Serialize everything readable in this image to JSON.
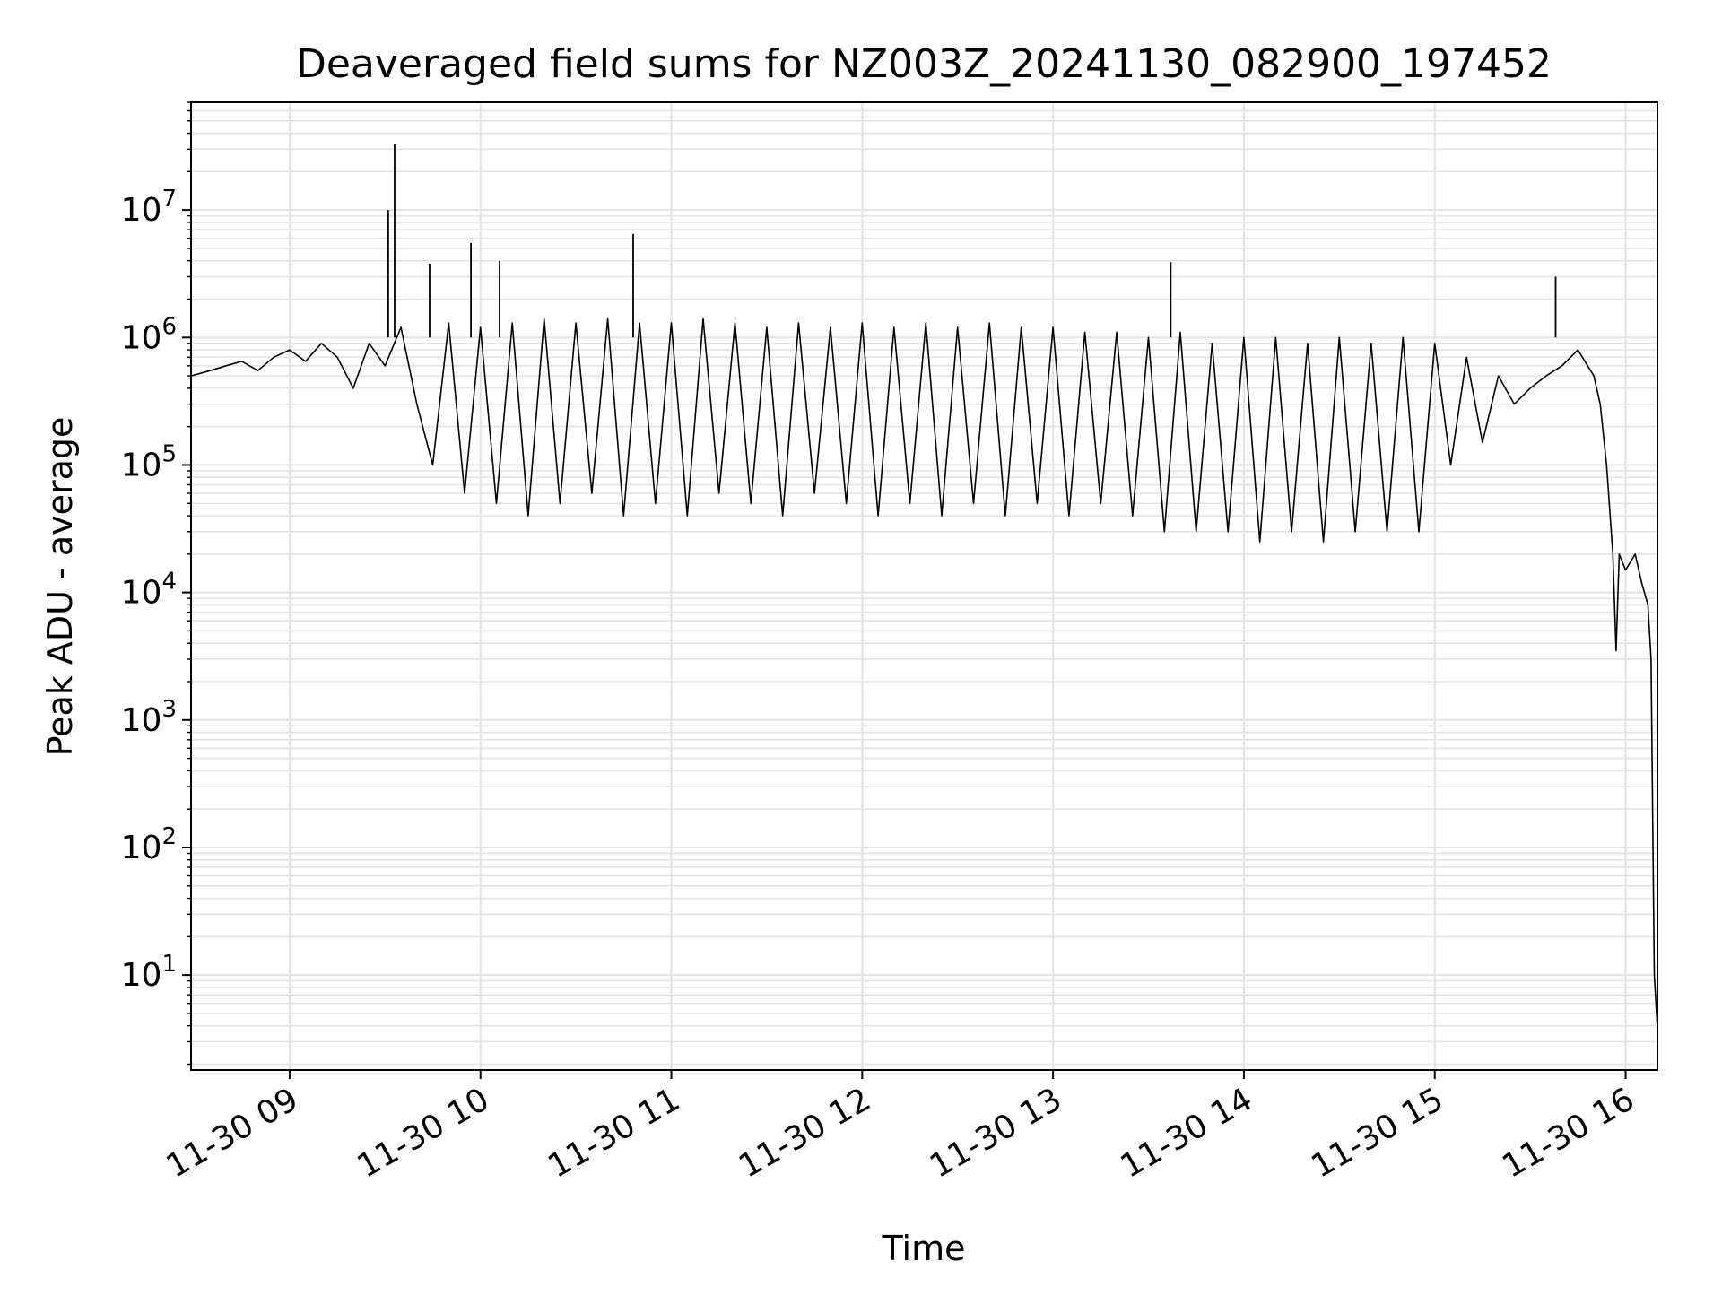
{
  "chart_data": {
    "type": "line",
    "title": "Deaveraged field sums for NZ003Z_20241130_082900_197452",
    "xlabel": "Time",
    "ylabel": "Peak ADU - average",
    "yscale": "log",
    "ylim": [
      1.8,
      70000000
    ],
    "xlim": [
      "2024-11-30 08:29",
      "2024-11-30 16:10"
    ],
    "grid": "major and minor, both axes",
    "line_color": "#000000",
    "x_ticks": [
      {
        "value": "2024-11-30 09:00",
        "label": "11-30 09"
      },
      {
        "value": "2024-11-30 10:00",
        "label": "11-30 10"
      },
      {
        "value": "2024-11-30 11:00",
        "label": "11-30 11"
      },
      {
        "value": "2024-11-30 12:00",
        "label": "11-30 12"
      },
      {
        "value": "2024-11-30 13:00",
        "label": "11-30 13"
      },
      {
        "value": "2024-11-30 14:00",
        "label": "11-30 14"
      },
      {
        "value": "2024-11-30 15:00",
        "label": "11-30 15"
      },
      {
        "value": "2024-11-30 16:00",
        "label": "11-30 16"
      }
    ],
    "y_ticks": [
      {
        "value": 10,
        "base": "10",
        "exp": "1"
      },
      {
        "value": 100,
        "base": "10",
        "exp": "2"
      },
      {
        "value": 1000,
        "base": "10",
        "exp": "3"
      },
      {
        "value": 10000,
        "base": "10",
        "exp": "4"
      },
      {
        "value": 100000,
        "base": "10",
        "exp": "5"
      },
      {
        "value": 1000000,
        "base": "10",
        "exp": "6"
      },
      {
        "value": 10000000,
        "base": "10",
        "exp": "7"
      }
    ],
    "series": [
      {
        "points": [
          [
            "2024-11-30 08:29",
            500000
          ],
          [
            "2024-11-30 08:35",
            550000
          ],
          [
            "2024-11-30 08:40",
            600000
          ],
          [
            "2024-11-30 08:45",
            650000
          ],
          [
            "2024-11-30 08:50",
            550000
          ],
          [
            "2024-11-30 08:55",
            700000
          ],
          [
            "2024-11-30 09:00",
            800000
          ],
          [
            "2024-11-30 09:05",
            650000
          ],
          [
            "2024-11-30 09:10",
            900000
          ],
          [
            "2024-11-30 09:15",
            700000
          ],
          [
            "2024-11-30 09:20",
            400000
          ],
          [
            "2024-11-30 09:25",
            900000
          ],
          [
            "2024-11-30 09:30",
            600000
          ],
          [
            "2024-11-30 09:35",
            1200000
          ],
          [
            "2024-11-30 09:40",
            300000
          ],
          [
            "2024-11-30 09:45",
            100000
          ],
          [
            "2024-11-30 09:50",
            1300000
          ],
          [
            "2024-11-30 09:55",
            60000
          ],
          [
            "2024-11-30 10:00",
            1200000
          ],
          [
            "2024-11-30 10:05",
            50000
          ],
          [
            "2024-11-30 10:10",
            1300000
          ],
          [
            "2024-11-30 10:15",
            40000
          ],
          [
            "2024-11-30 10:20",
            1400000
          ],
          [
            "2024-11-30 10:25",
            50000
          ],
          [
            "2024-11-30 10:30",
            1300000
          ],
          [
            "2024-11-30 10:35",
            60000
          ],
          [
            "2024-11-30 10:40",
            1400000
          ],
          [
            "2024-11-30 10:45",
            40000
          ],
          [
            "2024-11-30 10:50",
            1300000
          ],
          [
            "2024-11-30 10:55",
            50000
          ],
          [
            "2024-11-30 11:00",
            1300000
          ],
          [
            "2024-11-30 11:05",
            40000
          ],
          [
            "2024-11-30 11:10",
            1400000
          ],
          [
            "2024-11-30 11:15",
            60000
          ],
          [
            "2024-11-30 11:20",
            1300000
          ],
          [
            "2024-11-30 11:25",
            50000
          ],
          [
            "2024-11-30 11:30",
            1200000
          ],
          [
            "2024-11-30 11:35",
            40000
          ],
          [
            "2024-11-30 11:40",
            1300000
          ],
          [
            "2024-11-30 11:45",
            60000
          ],
          [
            "2024-11-30 11:50",
            1200000
          ],
          [
            "2024-11-30 11:55",
            50000
          ],
          [
            "2024-11-30 12:00",
            1300000
          ],
          [
            "2024-11-30 12:05",
            40000
          ],
          [
            "2024-11-30 12:10",
            1200000
          ],
          [
            "2024-11-30 12:15",
            50000
          ],
          [
            "2024-11-30 12:20",
            1300000
          ],
          [
            "2024-11-30 12:25",
            40000
          ],
          [
            "2024-11-30 12:30",
            1200000
          ],
          [
            "2024-11-30 12:35",
            50000
          ],
          [
            "2024-11-30 12:40",
            1300000
          ],
          [
            "2024-11-30 12:45",
            40000
          ],
          [
            "2024-11-30 12:50",
            1200000
          ],
          [
            "2024-11-30 12:55",
            50000
          ],
          [
            "2024-11-30 13:00",
            1200000
          ],
          [
            "2024-11-30 13:05",
            40000
          ],
          [
            "2024-11-30 13:10",
            1100000
          ],
          [
            "2024-11-30 13:15",
            50000
          ],
          [
            "2024-11-30 13:20",
            1100000
          ],
          [
            "2024-11-30 13:25",
            40000
          ],
          [
            "2024-11-30 13:30",
            1000000
          ],
          [
            "2024-11-30 13:35",
            30000
          ],
          [
            "2024-11-30 13:40",
            1100000
          ],
          [
            "2024-11-30 13:45",
            30000
          ],
          [
            "2024-11-30 13:50",
            900000
          ],
          [
            "2024-11-30 13:55",
            30000
          ],
          [
            "2024-11-30 14:00",
            1000000
          ],
          [
            "2024-11-30 14:05",
            25000
          ],
          [
            "2024-11-30 14:10",
            1000000
          ],
          [
            "2024-11-30 14:15",
            30000
          ],
          [
            "2024-11-30 14:20",
            900000
          ],
          [
            "2024-11-30 14:25",
            25000
          ],
          [
            "2024-11-30 14:30",
            1000000
          ],
          [
            "2024-11-30 14:35",
            30000
          ],
          [
            "2024-11-30 14:40",
            900000
          ],
          [
            "2024-11-30 14:45",
            30000
          ],
          [
            "2024-11-30 14:50",
            1000000
          ],
          [
            "2024-11-30 14:55",
            30000
          ],
          [
            "2024-11-30 15:00",
            900000
          ],
          [
            "2024-11-30 15:05",
            100000
          ],
          [
            "2024-11-30 15:10",
            700000
          ],
          [
            "2024-11-30 15:15",
            150000
          ],
          [
            "2024-11-30 15:20",
            500000
          ],
          [
            "2024-11-30 15:25",
            300000
          ],
          [
            "2024-11-30 15:30",
            400000
          ],
          [
            "2024-11-30 15:35",
            500000
          ],
          [
            "2024-11-30 15:40",
            600000
          ],
          [
            "2024-11-30 15:45",
            800000
          ],
          [
            "2024-11-30 15:50",
            500000
          ],
          [
            "2024-11-30 15:52",
            300000
          ],
          [
            "2024-11-30 15:54",
            100000
          ],
          [
            "2024-11-30 15:56",
            20000
          ],
          [
            "2024-11-30 15:57",
            3500
          ],
          [
            "2024-11-30 15:58",
            20000
          ],
          [
            "2024-11-30 16:00",
            15000
          ],
          [
            "2024-11-30 16:03",
            20000
          ],
          [
            "2024-11-30 16:05",
            12000
          ],
          [
            "2024-11-30 16:07",
            8000
          ],
          [
            "2024-11-30 16:08",
            3000
          ],
          [
            "2024-11-30 16:09",
            10
          ],
          [
            "2024-11-30 16:10",
            3.8
          ]
        ],
        "spikes": [
          [
            "2024-11-30 09:31",
            10000000
          ],
          [
            "2024-11-30 09:33",
            33000000
          ],
          [
            "2024-11-30 09:44",
            3800000
          ],
          [
            "2024-11-30 09:57",
            5500000
          ],
          [
            "2024-11-30 10:06",
            4000000
          ],
          [
            "2024-11-30 10:48",
            6500000
          ],
          [
            "2024-11-30 13:37",
            3900000
          ],
          [
            "2024-11-30 15:38",
            3000000
          ]
        ]
      }
    ]
  }
}
